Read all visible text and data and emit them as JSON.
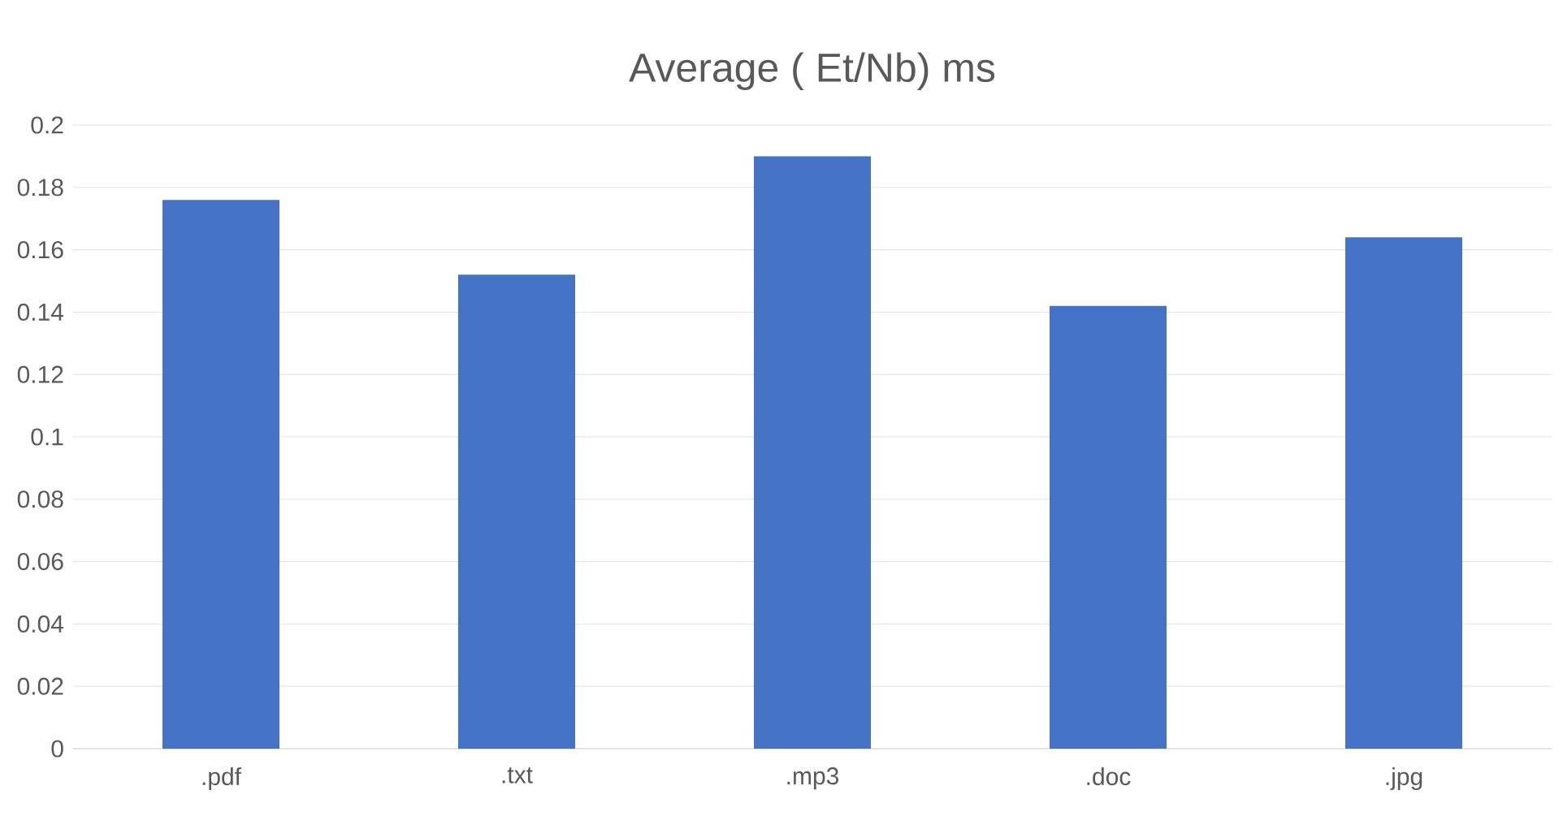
{
  "chart_data": {
    "type": "bar",
    "title": "Average ( Et/Nb) ms",
    "categories": [
      ".pdf",
      ".txt",
      ".mp3",
      ".doc",
      ".jpg"
    ],
    "values": [
      0.176,
      0.152,
      0.19,
      0.142,
      0.164
    ],
    "color": "#4472c4",
    "ylim": [
      0,
      0.2
    ],
    "yticks": [
      0,
      0.02,
      0.04,
      0.06,
      0.08,
      0.1,
      0.12,
      0.14,
      0.16,
      0.18,
      0.2
    ],
    "grid": "y"
  }
}
